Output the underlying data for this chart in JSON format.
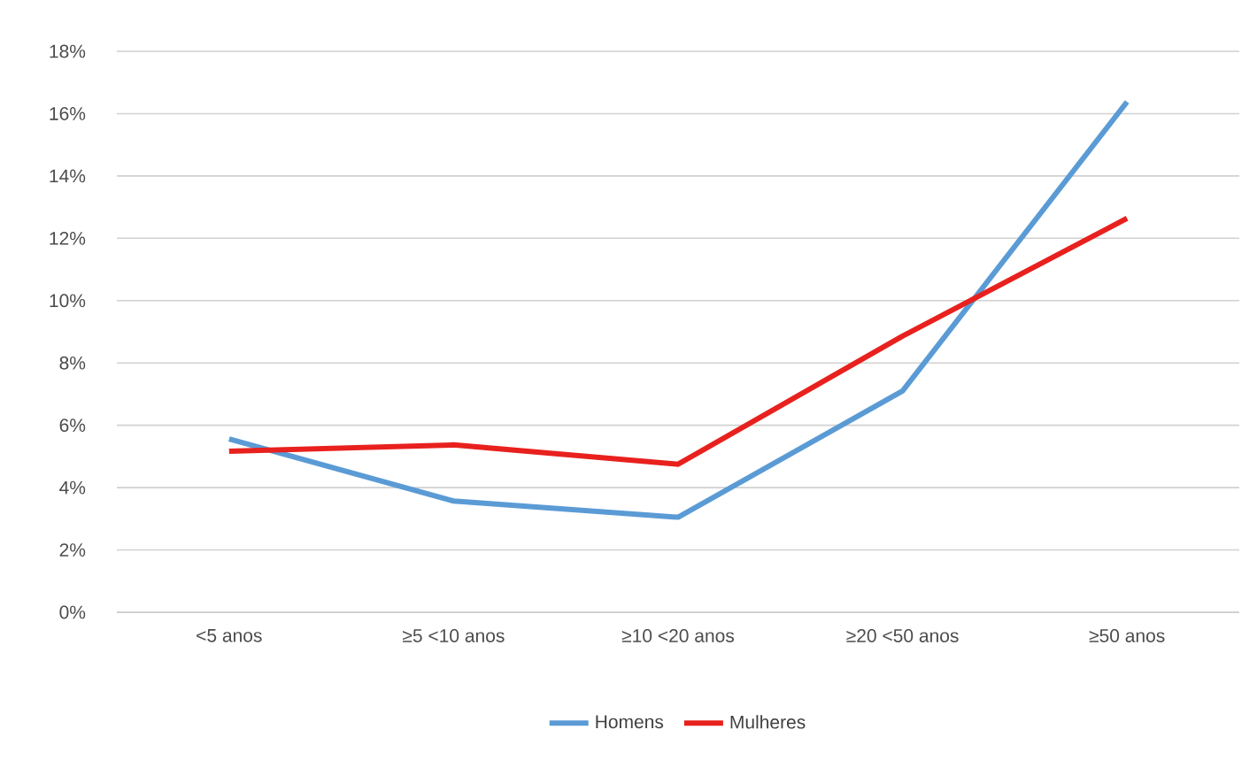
{
  "chart_data": {
    "type": "line",
    "categories": [
      "<5 anos",
      "≥5  <10 anos",
      "≥10 <20 anos",
      "≥20 <50 anos",
      "≥50 anos"
    ],
    "series": [
      {
        "name": "Homens",
        "color": "#5b9bd5",
        "values": [
          5.56,
          3.57,
          3.05,
          7.1,
          16.38
        ]
      },
      {
        "name": "Mulheres",
        "color": "#e8211e",
        "values": [
          5.17,
          5.37,
          4.75,
          8.86,
          12.64
        ]
      }
    ],
    "ylim": [
      0,
      18
    ],
    "yticks": [
      {
        "value": 0,
        "label": "0%"
      },
      {
        "value": 2,
        "label": "2%"
      },
      {
        "value": 4,
        "label": "4%"
      },
      {
        "value": 6,
        "label": "6%"
      },
      {
        "value": 8,
        "label": "8%"
      },
      {
        "value": 10,
        "label": "10%"
      },
      {
        "value": 12,
        "label": "12%"
      },
      {
        "value": 14,
        "label": "14%"
      },
      {
        "value": 16,
        "label": "16%"
      },
      {
        "value": 18,
        "label": "18%"
      }
    ],
    "grid": "y",
    "legend": "bottom",
    "marker": "none",
    "line_style": "solid"
  }
}
